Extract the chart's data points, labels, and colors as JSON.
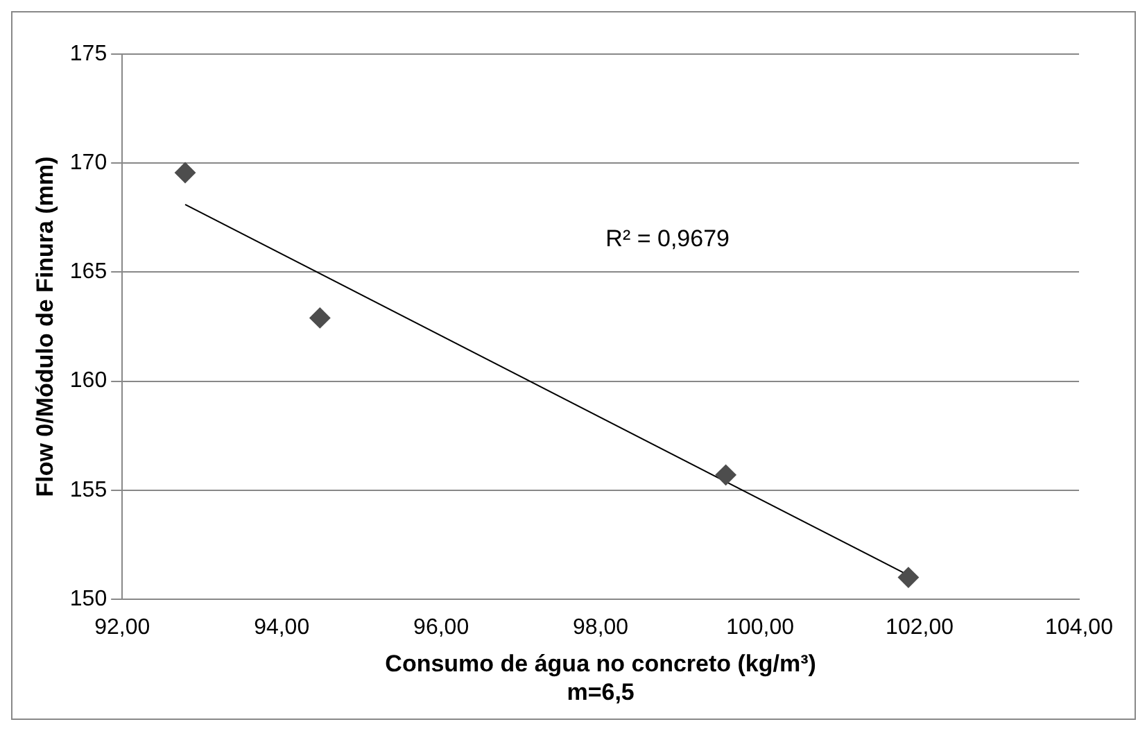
{
  "chart_data": {
    "type": "scatter",
    "xlabel": "Consumo de água no concreto (kg/m³)",
    "ylabel": "Flow 0/Módulo de Finura (mm)",
    "series": [
      {
        "color": "#4d4d4d",
        "marker": "diamond",
        "x": [
          92.79,
          94.48,
          99.57,
          101.86
        ],
        "values": [
          169.56,
          162.9,
          155.7,
          151.0
        ]
      },
      {
        "type": "line",
        "color": "#000000",
        "marker": "none",
        "x": [
          92.79,
          101.86
        ],
        "values": [
          168.1,
          151.1
        ]
      }
    ],
    "xlim": [
      92,
      104
    ],
    "xticks": [
      {
        "value": 92,
        "label": "92,00"
      },
      {
        "value": 94,
        "label": "94,00"
      },
      {
        "value": 96,
        "label": "96,00"
      },
      {
        "value": 98,
        "label": "98,00"
      },
      {
        "value": 100,
        "label": "100,00"
      },
      {
        "value": 102,
        "label": "102,00"
      },
      {
        "value": 104,
        "label": "104,00"
      }
    ],
    "ylim": [
      150,
      175
    ],
    "yticks": [
      150,
      155,
      160,
      165,
      170,
      175
    ],
    "grid": "y",
    "legend": false,
    "annotations": [
      "R² = 0,9679",
      "m=6,5"
    ]
  }
}
